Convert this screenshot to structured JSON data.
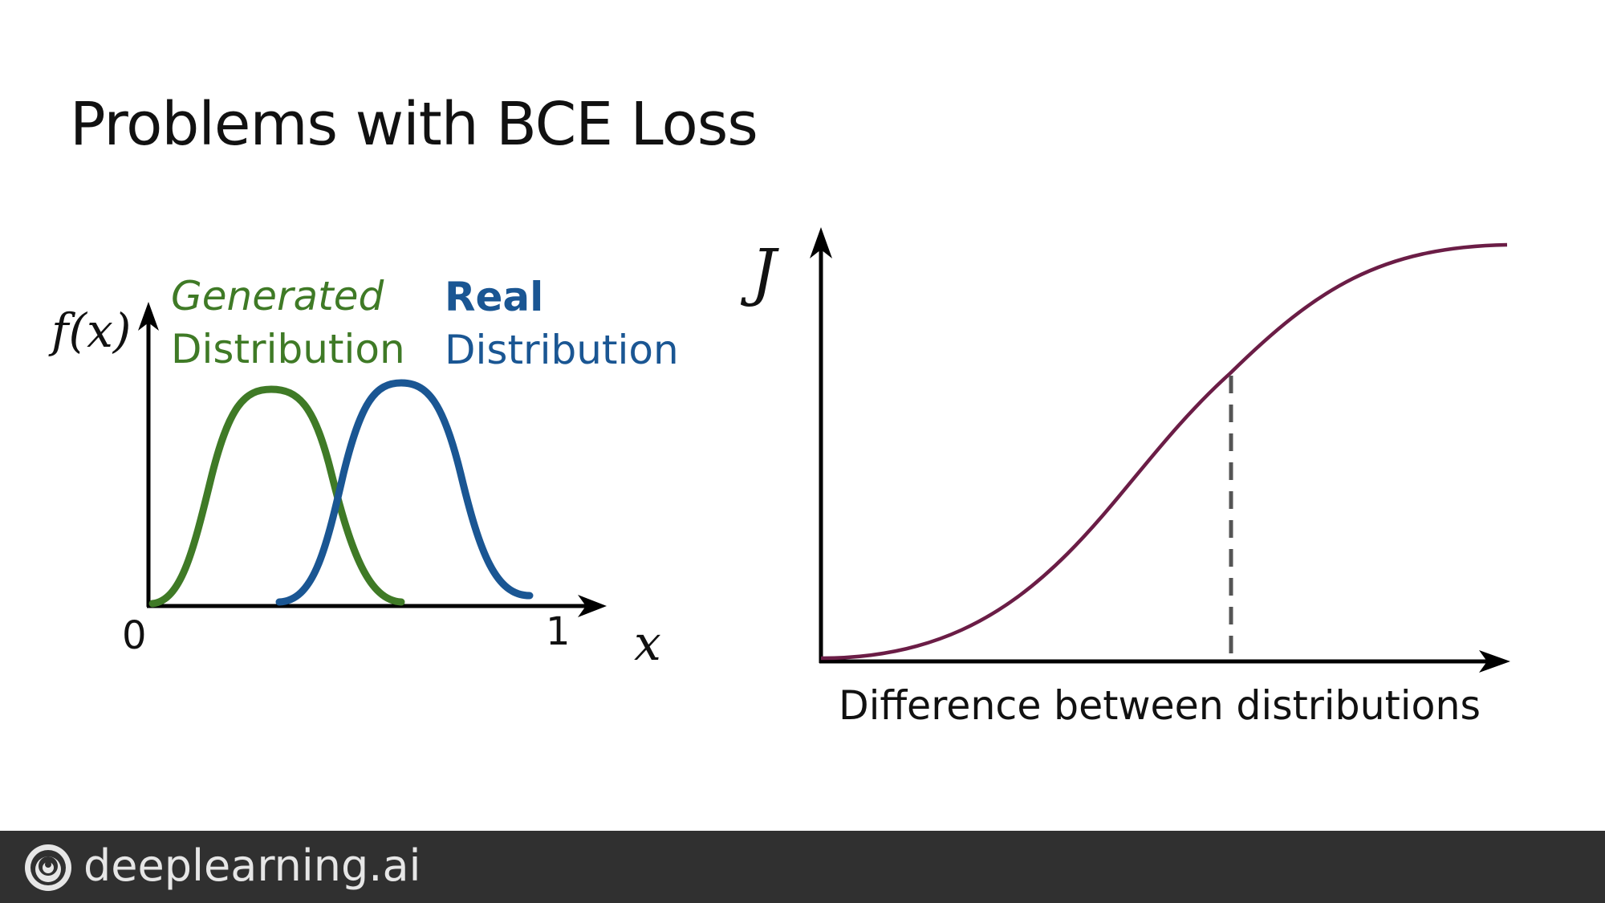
{
  "slide": {
    "title": "Problems with BCE Loss"
  },
  "left_diagram": {
    "y_axis_label": "f(x)",
    "x_axis_label": "x",
    "x_tick_start": "0",
    "x_tick_end": "1",
    "generated_label_line1": "Generated",
    "generated_label_line2": "Distribution",
    "real_label_line1": "Real",
    "real_label_line2": "Distribution",
    "generated_color": "#3f7a26",
    "real_color": "#1a5693"
  },
  "right_diagram": {
    "y_axis_label": "J",
    "x_axis_label": "Difference between distributions",
    "curve_color": "#6b1d46",
    "marker_color": "#555555"
  },
  "footer": {
    "brand": "deeplearning.ai",
    "background": "#303030",
    "logo_icon": "deeplearning-logo-icon"
  }
}
